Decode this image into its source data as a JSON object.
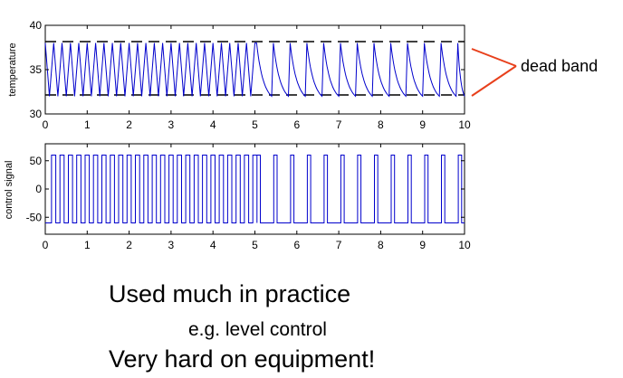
{
  "chart_data": [
    {
      "type": "line",
      "ylabel": "temperature",
      "xlim": [
        0,
        10
      ],
      "ylim": [
        30,
        40
      ],
      "xticks": [
        0,
        1,
        2,
        3,
        4,
        5,
        6,
        7,
        8,
        9,
        10
      ],
      "yticks": [
        30,
        35,
        40
      ],
      "dead_band": {
        "upper": 38,
        "lower": 32
      },
      "series": [
        {
          "color": "#0000cc",
          "description_segments": [
            {
              "x_start": 0,
              "x_end": 5,
              "cycle_period": 0.2,
              "low": 32,
              "high": 38
            },
            {
              "x_start": 5,
              "x_end": 10,
              "cycle_period": 0.4,
              "low": 32,
              "high": 38
            }
          ]
        }
      ]
    },
    {
      "type": "line",
      "ylabel": "control signal",
      "xlim": [
        0,
        10
      ],
      "ylim": [
        -80,
        80
      ],
      "xticks": [
        0,
        1,
        2,
        3,
        4,
        5,
        6,
        7,
        8,
        9,
        10
      ],
      "yticks": [
        50,
        0,
        -50
      ],
      "series": [
        {
          "color": "#0000cc",
          "high": 60,
          "low": -60,
          "segments": [
            {
              "x_start": 0.15,
              "x_end": 5.05,
              "cycle_period": 0.2,
              "on_duration": 0.1
            },
            {
              "x_start": 5.05,
              "x_end": 10,
              "cycle_period": 0.4,
              "on_duration": 0.08
            }
          ]
        }
      ]
    }
  ],
  "annotation": {
    "label": "dead band",
    "color": "#e8401c"
  },
  "text_lines": {
    "line1": "Used much in practice",
    "line2": "e.g. level control",
    "line3": "Very hard on equipment!"
  }
}
